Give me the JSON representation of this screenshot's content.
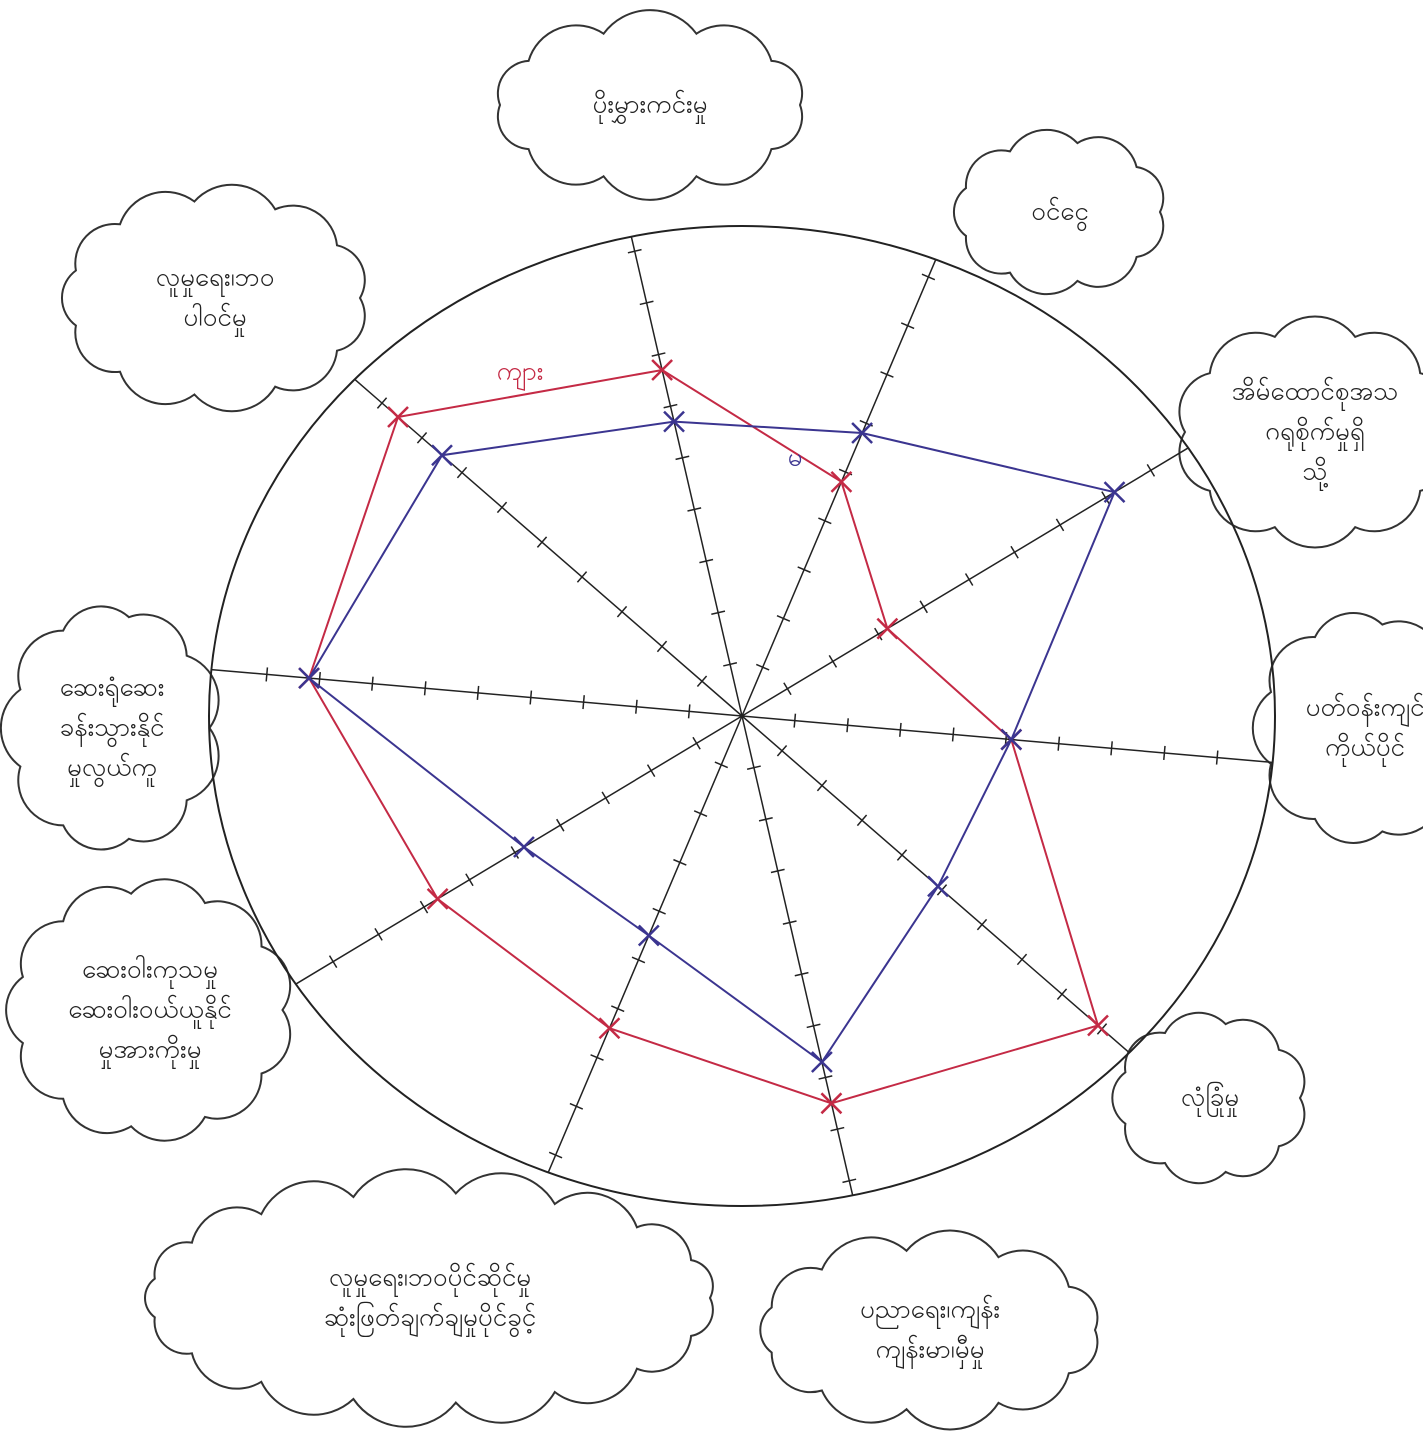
{
  "chart_data": {
    "type": "radar",
    "categories": [
      [
        "ပိုးမွှားကင်းမှု"
      ],
      [
        "ဝင်ငွေ"
      ],
      [
        "အိမ်ထောင်စုအသ",
        "ဂရုစိုက်မှုရှိ",
        "သို့"
      ],
      [
        "ပတ်ဝန်းကျင်",
        "ကိုယ်ပိုင်"
      ],
      [
        "လုံခြုံမှု"
      ],
      [
        "ပညာရေး၊ကျန်း",
        "ကျန်းမာ၊မှီမှု"
      ],
      [
        "လူမှုရေး၊ဘဝပိုင်ဆိုင်မှု",
        "ဆုံးဖြတ်ချက်ချမှုပိုင်ခွင့်"
      ],
      [
        "ဆေးဝါးကုသမှု",
        "ဆေးဝါးဝယ်ယူနိုင်",
        "မှုအားကိုးမှု"
      ],
      [
        "ဆေးရုံဆေး",
        "ခန်းသွားနိုင်",
        "မှုလွယ်ကူ"
      ],
      [
        "လူမှုရေး၊ဘဝ",
        "ပါဝင်မှု"
      ]
    ],
    "series": [
      {
        "name": "ကျား",
        "color": "#c42a45",
        "values": [
          6.7,
          4.8,
          3.2,
          5.1,
          8.9,
          7.5,
          6.4,
          6.7,
          8.2,
          8.6
        ]
      },
      {
        "name": "မ",
        "color": "#3b3590",
        "values": [
          5.7,
          5.8,
          8.2,
          5.1,
          4.9,
          6.7,
          4.5,
          4.8,
          8.2,
          7.5
        ]
      }
    ],
    "rlim": [
      0,
      10
    ],
    "rticks": [
      1,
      2,
      3,
      4,
      5,
      6,
      7,
      8,
      9
    ]
  }
}
